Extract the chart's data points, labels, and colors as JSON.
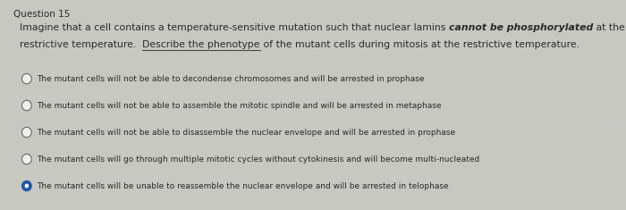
{
  "title": "Question 15",
  "background_color": "#f0efeb",
  "outer_bg": "#c8c7c0",
  "line1_normal": "Imagine that a cell contains a temperature-sensitive mutation such that nuclear lamins ",
  "line1_bold_italic": "cannot be phosphorylated",
  "line1_end": " at the",
  "line2_normal1": "restrictive temperature.  ",
  "line2_underline": "Describe the phenotype",
  "line2_normal2": " of the mutant cells during mitosis at the restrictive temperature.",
  "options": [
    "The mutant cells will not be able to decondense chromosomes and will be arrested in prophase",
    "The mutant cells will not be able to assemble the mitotic spindle and will be arrested in metaphase",
    "The mutant cells will not be able to disassemble the nuclear envelope and will be arrested in prophase",
    "The mutant cells will go through multiple mitotic cycles without cytokinesis and will become multi-nucleated",
    "The mutant cells will be unable to reassemble the nuclear envelope and will be arrested in telophase"
  ],
  "selected_option": 4,
  "text_color": "#2a2a2a",
  "option_font_size": 6.5,
  "question_font_size": 7.8,
  "title_font_size": 7.5,
  "selected_color": "#2255aa",
  "unselected_color": "#666666",
  "divider_color": "#cccccc"
}
